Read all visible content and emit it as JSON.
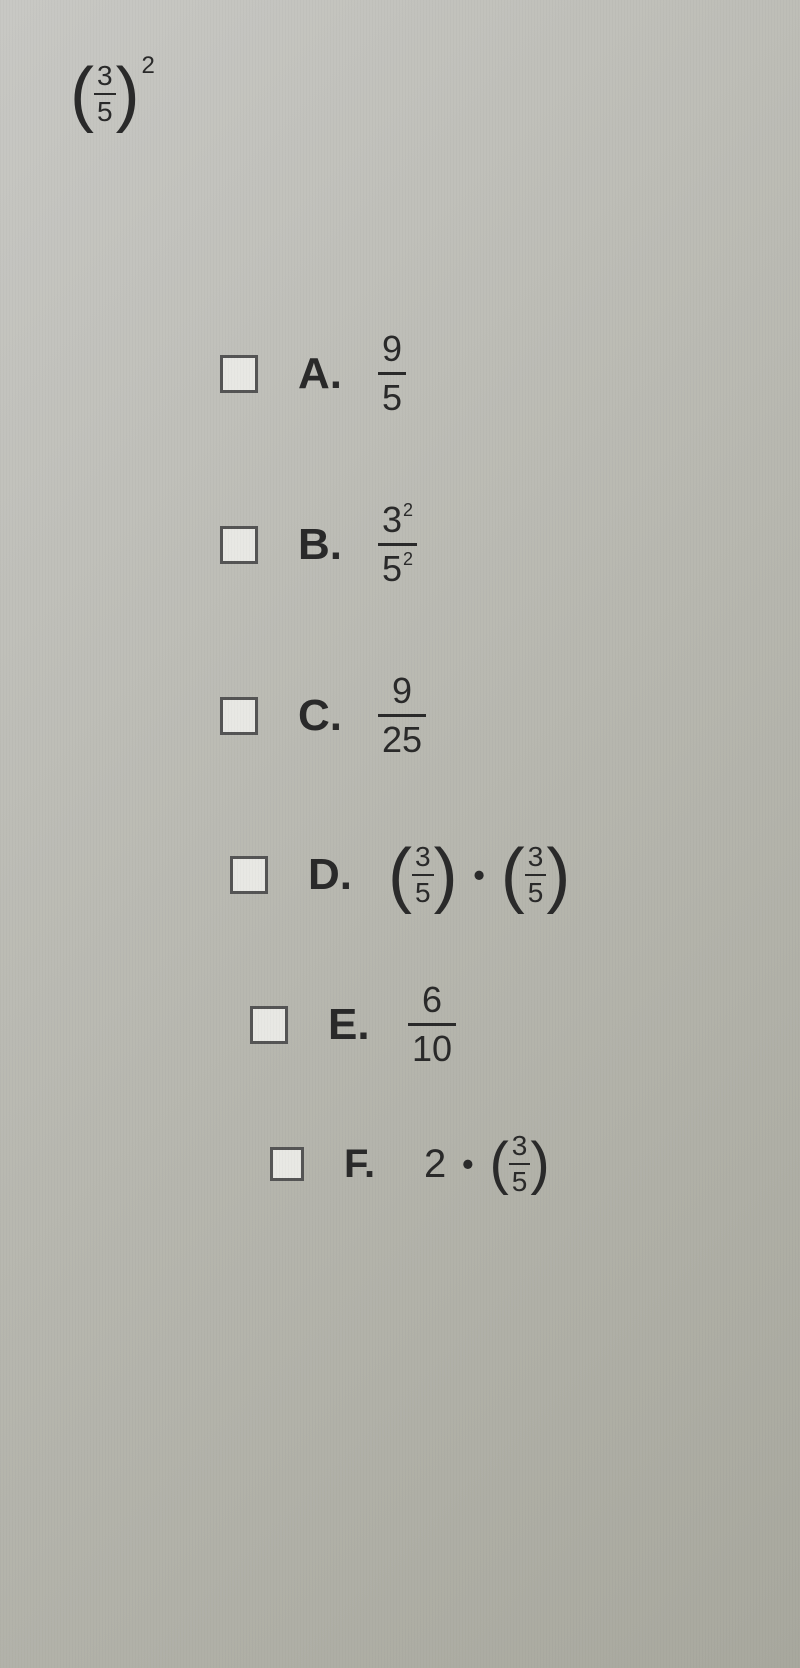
{
  "question": {
    "base_numerator": "3",
    "base_denominator": "5",
    "exponent": "2"
  },
  "options": [
    {
      "letter": "A.",
      "type": "fraction",
      "numerator": "9",
      "denominator": "5"
    },
    {
      "letter": "B.",
      "type": "fraction_with_exponents",
      "num_base": "3",
      "num_exp": "2",
      "den_base": "5",
      "den_exp": "2"
    },
    {
      "letter": "C.",
      "type": "fraction",
      "numerator": "9",
      "denominator": "25"
    },
    {
      "letter": "D.",
      "type": "fraction_product",
      "f1_num": "3",
      "f1_den": "5",
      "f2_num": "3",
      "f2_den": "5"
    },
    {
      "letter": "E.",
      "type": "fraction",
      "numerator": "6",
      "denominator": "10"
    },
    {
      "letter": "F.",
      "type": "scalar_times_fraction",
      "scalar": "2",
      "f_num": "3",
      "f_den": "5"
    }
  ],
  "colors": {
    "text": "#2a2a2a",
    "checkbox_border": "#555555",
    "checkbox_bg": "#e8e8e4",
    "bg_light": "#c8c8c4",
    "bg_dark": "#a8a89e"
  }
}
